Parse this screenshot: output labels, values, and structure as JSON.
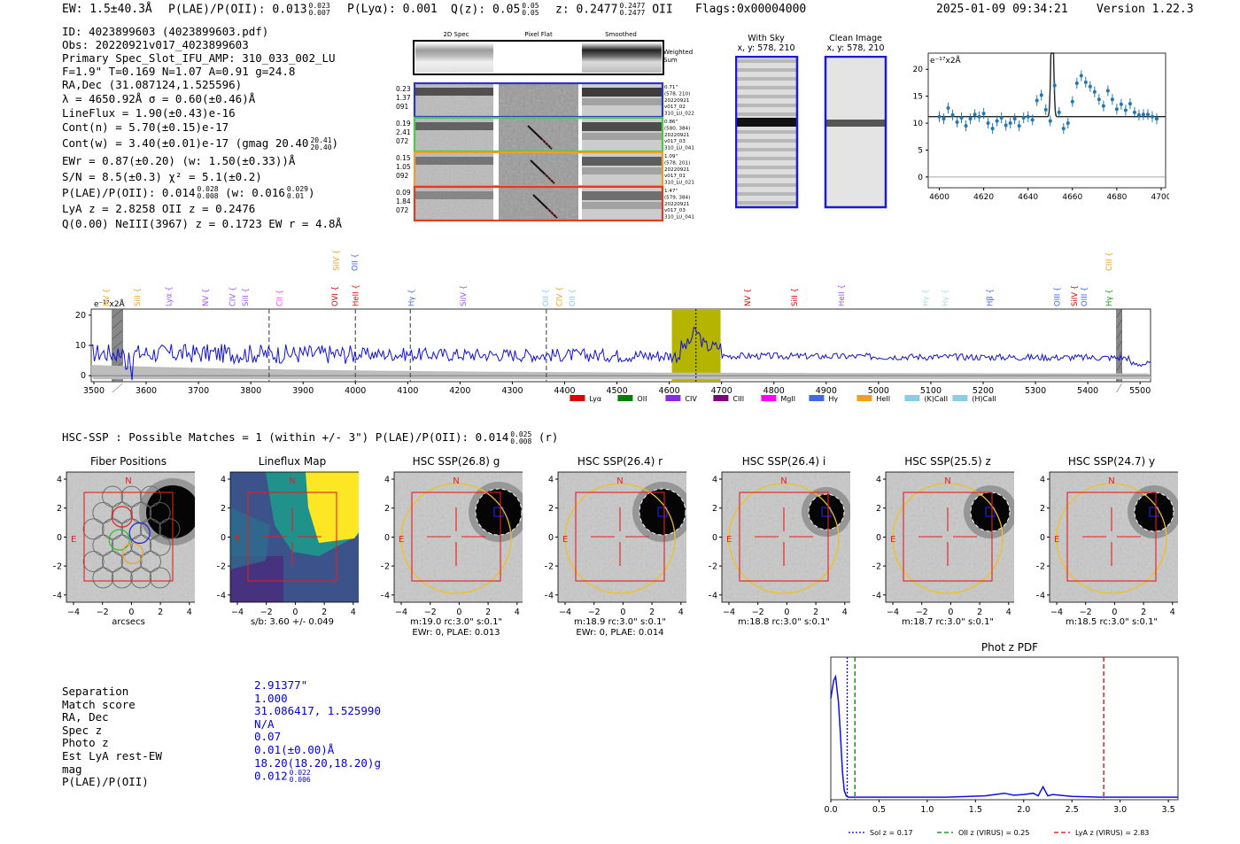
{
  "header": {
    "ew": "EW: 1.5±40.3Å",
    "plae_label": "P(LAE)/P(OII): 0.013",
    "plae_hi": "0.023",
    "plae_lo": "0.007",
    "plya": "P(Lyα): 0.001",
    "qz_label": "Q(z): 0.05",
    "qz_hi": "0.05",
    "qz_lo": "0.05",
    "z_label": "z: 0.2477",
    "z_hi": "0.2477",
    "z_lo": "0.2477",
    "z_line": "OII",
    "flags": "Flags:0x00004000",
    "datetime": "2025-01-09 09:34:21",
    "version": "Version 1.22.3"
  },
  "info": {
    "id": "ID: 4023899603 (4023899603.pdf)",
    "obs": "Obs: 20220921v017_4023899603",
    "primary": "Primary Spec_Slot_IFU_AMP: 310_033_002_LU",
    "fparams": "F=1.9\"  T=0.169  N=1.07  A=0.91  g=24.8",
    "radec": "RA,Dec (31.087124,1.525596)",
    "lambda": "λ = 4650.92Å  σ = 0.60(±0.46)Å",
    "lineflux": "LineFlux = 1.90(±0.43)e-16",
    "contn": "Cont(n) = 5.70(±0.15)e-17",
    "contw": "Cont(w) = 3.40(±0.01)e-17 (gmag 20.40",
    "contw_hi": "20.41",
    "contw_lo": "20.40",
    "contw_close": ")",
    "ewr": "EWr = 0.87(±0.20) (w: 1.50(±0.33))Å",
    "sn": "S/N = 8.5(±0.3)  χ² = 5.1(±0.2)",
    "plae": "P(LAE)/P(OII): 0.014",
    "plae_hi": "0.028",
    "plae_lo": "0.008",
    "plae_w": "(w: 0.016",
    "plae_w_hi": "0.029",
    "plae_w_lo": "0.01",
    "plae_w_close": ")",
    "lya": "LyA z = 2.8258  OII z = 0.2476",
    "q": "Q(0.00) NeIII(3967) z = 0.1723  EW r = 4.8Å"
  },
  "cutouts": {
    "headers": [
      "2D Spec",
      "Pixel Flat",
      "Smoothed"
    ],
    "weighted": "Weighted Sum",
    "rows": [
      {
        "nums": [
          "0.23",
          "1.37",
          "091"
        ],
        "color": "#2b35c9",
        "notes": [
          "0.71\"",
          "(578, 210)",
          "20220921",
          "v017_02",
          "310_LU_022"
        ]
      },
      {
        "nums": [
          "0.19",
          "2.41",
          "072"
        ],
        "color": "#3fd23f",
        "notes": [
          "0.86\"",
          "(580, 384)",
          "20220921",
          "v017_03",
          "310_LU_041"
        ]
      },
      {
        "nums": [
          "0.15",
          "1.05",
          "092"
        ],
        "color": "#f0a020",
        "notes": [
          "1.09\"",
          "(578, 201)",
          "20220921",
          "v017_01",
          "310_LU_021"
        ]
      },
      {
        "nums": [
          "0.09",
          "1.84",
          "072"
        ],
        "color": "#e23b1e",
        "notes": [
          "1.47\"",
          "(579, 384)",
          "20220921",
          "v017_03",
          "310_LU_041"
        ]
      }
    ],
    "with_sky": "With Sky",
    "with_sky_xy": "x, y: 578, 210",
    "clean": "Clean Image",
    "clean_xy": "x, y: 578, 210"
  },
  "chart_data": [
    {
      "type": "line",
      "name": "zoom-line-fit",
      "ylabel_unit": "e⁻¹⁷x2Å",
      "xlim": [
        4595,
        4702
      ],
      "ylim": [
        -2,
        23
      ],
      "xticks": [
        4600,
        4620,
        4640,
        4660,
        4680,
        4700
      ],
      "yticks": [
        0,
        5,
        10,
        15,
        20
      ],
      "points_x": [
        4600,
        4602,
        4604,
        4606,
        4608,
        4610,
        4612,
        4614,
        4616,
        4618,
        4620,
        4622,
        4624,
        4626,
        4628,
        4630,
        4632,
        4634,
        4636,
        4638,
        4640,
        4642,
        4644,
        4646,
        4648,
        4650,
        4652,
        4654,
        4656,
        4658,
        4660,
        4662,
        4664,
        4666,
        4668,
        4670,
        4672,
        4674,
        4676,
        4678,
        4680,
        4682,
        4684,
        4686,
        4688,
        4690,
        4692,
        4694,
        4696,
        4698
      ],
      "points_y": [
        11.2,
        10.8,
        12.8,
        11.5,
        10.2,
        11.0,
        9.5,
        10.8,
        11.6,
        11.2,
        11.8,
        10.0,
        9.0,
        10.4,
        11.0,
        9.6,
        10.0,
        10.8,
        9.5,
        11.0,
        11.2,
        10.6,
        14.2,
        15.2,
        12.5,
        10.4,
        17.0,
        12.0,
        9.0,
        10.0,
        14.0,
        17.4,
        18.8,
        17.6,
        16.8,
        15.8,
        14.4,
        13.2,
        16.0,
        14.4,
        12.6,
        13.5,
        12.4,
        13.6,
        12.0,
        11.5,
        11.6,
        11.6,
        11.2,
        10.8
      ],
      "model_continuum": 11.2,
      "model_peak": 4650.9,
      "model_amp": 23.0
    },
    {
      "type": "line",
      "name": "full-spectrum",
      "ylabel_unit": "e⁻¹⁷x2Å",
      "xlim": [
        3495,
        5520
      ],
      "ylim": [
        -2,
        22
      ],
      "xticks": [
        3500,
        3600,
        3700,
        3800,
        3900,
        4000,
        4100,
        4200,
        4300,
        4400,
        4500,
        4600,
        4700,
        4800,
        4900,
        5000,
        5100,
        5200,
        5300,
        5400,
        5500
      ],
      "yticks": [
        0,
        10,
        20
      ],
      "highlight_range": [
        4605,
        4698
      ],
      "emission_marker": 4651,
      "masked_regions": [
        [
          3535,
          3555
        ],
        [
          5455,
          5465
        ]
      ],
      "dashed_lines": [
        3835,
        4000,
        4105,
        4365
      ],
      "line_labels": [
        {
          "label": "NV",
          "x": 3524,
          "color": "#f0a020",
          "row": 1
        },
        {
          "label": "SiII",
          "x": 3583,
          "color": "#f0a020",
          "row": 1
        },
        {
          "label": "Lyα",
          "x": 3643,
          "color": "#a050ff",
          "row": 1
        },
        {
          "label": "NV",
          "x": 3713,
          "color": "#a050ff",
          "row": 1
        },
        {
          "label": "CIV",
          "x": 3765,
          "color": "#a050ff",
          "row": 1
        },
        {
          "label": "SiII",
          "x": 3790,
          "color": "#a050ff",
          "row": 1
        },
        {
          "label": "CII",
          "x": 3855,
          "color": "#ff40ff",
          "row": 1
        },
        {
          "label": "OVI",
          "x": 3961,
          "color": "#e00000",
          "row": 1
        },
        {
          "label": "HeII",
          "x": 4000,
          "color": "#e00000",
          "row": 1
        },
        {
          "label": "SiIV",
          "x": 3963,
          "color": "#f0a020",
          "row": 0
        },
        {
          "label": "OII",
          "x": 3999,
          "color": "#4060ff",
          "row": 0
        },
        {
          "label": "Hγ",
          "x": 4107,
          "color": "#4060ff",
          "row": 1
        },
        {
          "label": "SiIV",
          "x": 4206,
          "color": "#a050ff",
          "row": 1
        },
        {
          "label": "OII",
          "x": 4364,
          "color": "#80c8f0",
          "row": 1
        },
        {
          "label": "CIV",
          "x": 4390,
          "color": "#f0a020",
          "row": 1
        },
        {
          "label": "OII",
          "x": 4414,
          "color": "#80c8f0",
          "row": 1
        },
        {
          "label": "NV",
          "x": 4750,
          "color": "#e00000",
          "row": 1
        },
        {
          "label": "SiII",
          "x": 4839,
          "color": "#e00000",
          "row": 1
        },
        {
          "label": "HeII",
          "x": 4929,
          "color": "#a050ff",
          "row": 1
        },
        {
          "label": "Hγ",
          "x": 5090,
          "color": "#a8d8f0",
          "row": 1
        },
        {
          "label": "Hγ",
          "x": 5127,
          "color": "#a8d8f0",
          "row": 1
        },
        {
          "label": "Hβ",
          "x": 5213,
          "color": "#4060ff",
          "row": 1
        },
        {
          "label": "OIII",
          "x": 5341,
          "color": "#4060ff",
          "row": 1
        },
        {
          "label": "SiIV",
          "x": 5374,
          "color": "#e00000",
          "row": 1
        },
        {
          "label": "OIII",
          "x": 5393,
          "color": "#4060ff",
          "row": 1
        },
        {
          "label": "Hγ",
          "x": 5440,
          "color": "#00a000",
          "row": 1
        },
        {
          "label": "CIII",
          "x": 5440,
          "color": "#f0a020",
          "row": 0
        }
      ],
      "legend": [
        {
          "label": "Lyα",
          "color": "#e00000"
        },
        {
          "label": "OII",
          "color": "#008000"
        },
        {
          "label": "CIV",
          "color": "#8a2be2"
        },
        {
          "label": "CIII",
          "color": "#800080"
        },
        {
          "label": "MgII",
          "color": "#ff00ff"
        },
        {
          "label": "Hγ",
          "color": "#4169e1"
        },
        {
          "label": "HeII",
          "color": "#f0a020"
        },
        {
          "label": "(K)CaII",
          "color": "#87ceeb"
        },
        {
          "label": "(H)CaII",
          "color": "#87ceeb"
        }
      ]
    },
    {
      "type": "line",
      "name": "phot-z-pdf",
      "title": "Phot z PDF",
      "xlim": [
        0.0,
        3.6
      ],
      "ylim": [
        0,
        1.1
      ],
      "xticks": [
        0.0,
        0.5,
        1.0,
        1.5,
        2.0,
        2.5,
        3.0,
        3.5
      ],
      "x": [
        0.0,
        0.03,
        0.05,
        0.08,
        0.1,
        0.12,
        0.14,
        0.16,
        0.18,
        0.2,
        0.4,
        0.8,
        1.2,
        1.6,
        1.8,
        1.9,
        2.0,
        2.1,
        2.15,
        2.2,
        2.25,
        2.3,
        2.5,
        2.8,
        3.2,
        3.6
      ],
      "y": [
        0.78,
        0.92,
        0.95,
        0.75,
        0.5,
        0.22,
        0.07,
        0.03,
        0.02,
        0.02,
        0.02,
        0.02,
        0.02,
        0.03,
        0.05,
        0.035,
        0.04,
        0.05,
        0.03,
        0.1,
        0.03,
        0.04,
        0.025,
        0.02,
        0.02,
        0.02
      ],
      "vlines": [
        {
          "x": 0.17,
          "label": "Sol z = 0.17",
          "color": "#0000e6",
          "style": "dotted"
        },
        {
          "x": 0.25,
          "label": "OII z (VIRUS) = 0.25",
          "color": "#008000",
          "style": "dashed"
        },
        {
          "x": 2.83,
          "label": "LyA z (VIRUS) = 2.83",
          "color": "#e00000",
          "style": "dashed"
        }
      ]
    }
  ],
  "hsc": {
    "summary": "HSC-SSP : Possible Matches = 1 (within +/- 3\")  P(LAE)/P(OII): 0.014",
    "summary_hi": "0.025",
    "summary_lo": "0.008",
    "summary_tail": "(r)",
    "panels": [
      {
        "title": "Fiber Positions",
        "cap1": "arcsecs",
        "cap2": ""
      },
      {
        "title": "Lineflux Map",
        "cap1": "s/b: 3.60 +/- 0.049",
        "cap2": ""
      },
      {
        "title": "HSC SSP(26.8) g",
        "cap1": "m:19.0 rc:3.0\"  s:0.1\"",
        "cap2": "EWr: 0, PLAE: 0.013"
      },
      {
        "title": "HSC SSP(26.4) r",
        "cap1": "m:18.9 rc:3.0\"  s:0.1\"",
        "cap2": "EWr: 0, PLAE: 0.014"
      },
      {
        "title": "HSC SSP(26.4) i",
        "cap1": "m:18.8 rc:3.0\"  s:0.1\"",
        "cap2": ""
      },
      {
        "title": "HSC SSP(25.5) z",
        "cap1": "m:18.7 rc:3.0\"  s:0.1\"",
        "cap2": ""
      },
      {
        "title": "HSC SSP(24.7) y",
        "cap1": "m:18.5 rc:3.0\"  s:0.1\"",
        "cap2": ""
      }
    ],
    "axis_ticks": [
      "4",
      "2",
      "0",
      "−2",
      "−4"
    ],
    "x_ticks": [
      "−4",
      "−2",
      "0",
      "2",
      "4"
    ],
    "n_label": "N",
    "e_label": "E"
  },
  "match": {
    "labels": [
      "Separation",
      "Match score",
      "RA, Dec",
      "Spec z",
      "Photo z",
      "Est LyA rest-EW",
      "mag",
      "P(LAE)/P(OII)"
    ],
    "values": [
      "2.91377\"",
      "1.000",
      "31.086417, 1.525990",
      "N/A",
      "0.07",
      "0.01(±0.00)Å",
      "18.20(18.20,18.20)g",
      "0.012"
    ],
    "plae_hi": "0.022",
    "plae_lo": "0.006"
  }
}
